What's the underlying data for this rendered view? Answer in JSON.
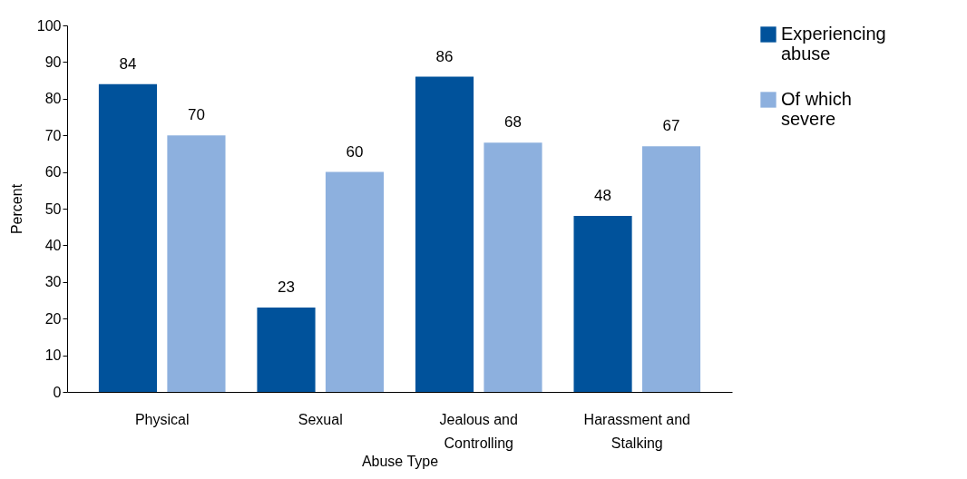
{
  "chart_data": {
    "type": "bar",
    "xlabel": "Abuse Type",
    "ylabel": "Percent",
    "categories": [
      "Physical",
      "Sexual",
      "Jealous and Controlling",
      "Harassment and Stalking"
    ],
    "series": [
      {
        "name": "Experiencing abuse",
        "color": "#00529b",
        "values": [
          84,
          23,
          86,
          48
        ]
      },
      {
        "name": "Of which severe",
        "color": "#8db0de",
        "values": [
          70,
          60,
          68,
          67
        ]
      }
    ],
    "ylim": [
      0,
      100
    ],
    "yticks": [
      0,
      10,
      20,
      30,
      40,
      50,
      60,
      70,
      80,
      90,
      100
    ],
    "grid": false,
    "legend": "right",
    "data_labels": true
  }
}
